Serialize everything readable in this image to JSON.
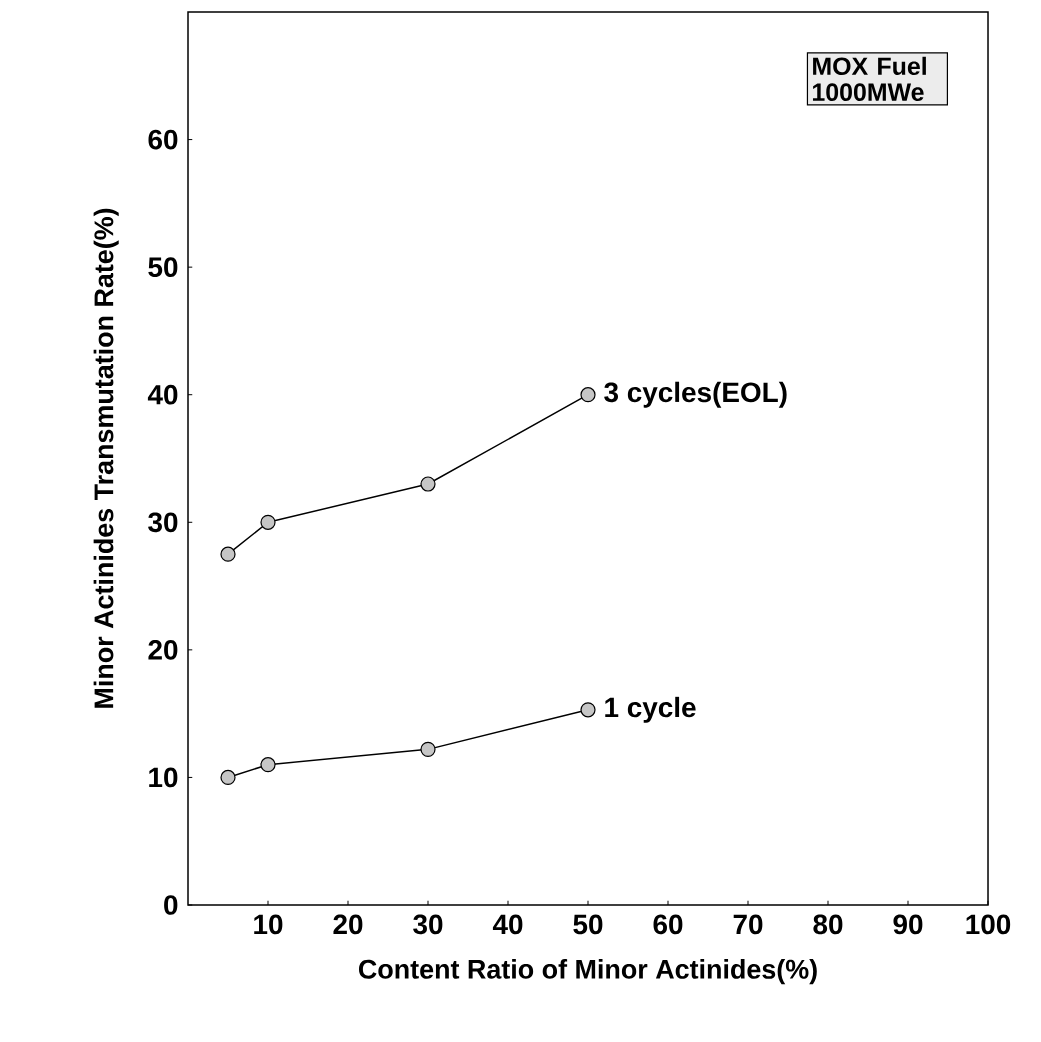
{
  "chart_data": {
    "type": "line",
    "xlabel": "Content Ratio of Minor Actinides(%)",
    "ylabel": "Minor Actinides Transmutation Rate(%)",
    "x": [
      5,
      10,
      30,
      50
    ],
    "series": [
      {
        "name": "3 cycles(EOL)",
        "color": "#000000",
        "values": [
          27.5,
          30,
          33,
          40
        ]
      },
      {
        "name": "1 cycle",
        "color": "#000000",
        "values": [
          10,
          11,
          12.2,
          15.3
        ]
      }
    ],
    "xlim": [
      0,
      100
    ],
    "xticks": [
      10,
      20,
      30,
      40,
      50,
      60,
      70,
      80,
      90,
      100
    ],
    "ylim": [
      0,
      70
    ],
    "yticks": [
      0,
      10,
      20,
      30,
      40,
      50,
      60
    ],
    "annotations": [
      "MOX Fuel 1000MWe"
    ],
    "grid": false,
    "marker": "circle",
    "line_style": "solid"
  }
}
